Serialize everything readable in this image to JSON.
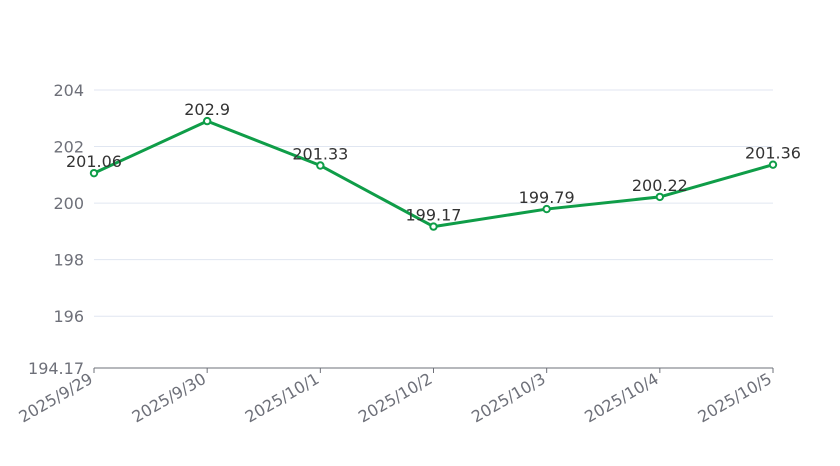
{
  "chart_data": {
    "type": "line",
    "categories": [
      "2025/9/29",
      "2025/9/30",
      "2025/10/1",
      "2025/10/2",
      "2025/10/3",
      "2025/10/4",
      "2025/10/5"
    ],
    "series": [
      {
        "values": [
          201.06,
          202.9,
          201.33,
          199.17,
          199.79,
          200.22,
          201.36
        ],
        "data_labels": [
          "201.06",
          "202.9",
          "201.33",
          "199.17",
          "199.79",
          "200.22",
          "201.36"
        ]
      }
    ],
    "ylim": [
      194.17,
      204
    ],
    "y_ticks": [
      196,
      198,
      200,
      202,
      204
    ],
    "y_tick_labels": [
      "196",
      "198",
      "200",
      "202",
      "204"
    ],
    "y_min_label": "194.17",
    "grid": true,
    "line_color": "#0f9d48",
    "x_tick_rotation": "diagonal"
  }
}
